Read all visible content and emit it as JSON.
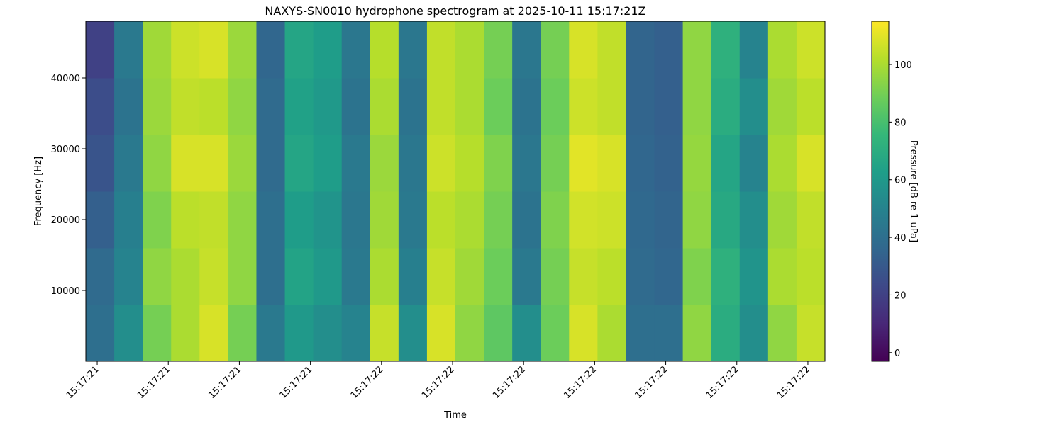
{
  "chart_data": {
    "type": "heatmap",
    "title": "NAXYS-SN0010 hydrophone spectrogram at 2025-10-11 15:17:21Z",
    "x_label": "Time",
    "y_label": "Frequency [Hz]",
    "colorbar_label": "Pressure [dB re 1 uPa]",
    "colormap": "viridis",
    "xlim": [
      -0.16,
      10.24
    ],
    "xticks": [
      {
        "value": 0,
        "label": "15:17:21"
      },
      {
        "value": 1,
        "label": "15:17:21"
      },
      {
        "value": 2,
        "label": "15:17:21"
      },
      {
        "value": 3,
        "label": "15:17:21"
      },
      {
        "value": 4,
        "label": "15:17:22"
      },
      {
        "value": 5,
        "label": "15:17:22"
      },
      {
        "value": 6,
        "label": "15:17:22"
      },
      {
        "value": 7,
        "label": "15:17:22"
      },
      {
        "value": 8,
        "label": "15:17:22"
      },
      {
        "value": 9,
        "label": "15:17:22"
      },
      {
        "value": 10,
        "label": "15:17:22"
      }
    ],
    "ylim": [
      0,
      48000
    ],
    "yticks": [
      10000,
      20000,
      30000,
      40000
    ],
    "clim": [
      -3,
      115
    ],
    "cticks": [
      0,
      20,
      40,
      60,
      80,
      100
    ],
    "xbins": [
      -0.16,
      0.24,
      0.64,
      1.04,
      1.44,
      1.84,
      2.24,
      2.64,
      3.04,
      3.44,
      3.84,
      4.24,
      4.64,
      5.04,
      5.44,
      5.84,
      6.24,
      6.64,
      7.04,
      7.44,
      7.84,
      8.24,
      8.64,
      9.04,
      9.44,
      9.84,
      10.24
    ],
    "ybins": [
      0,
      8000,
      16000,
      24000,
      32000,
      40000,
      48000
    ],
    "z": [
      [
        40,
        55,
        90,
        100,
        108,
        90,
        45,
        60,
        55,
        50,
        105,
        55,
        108,
        95,
        85,
        55,
        88,
        108,
        100,
        40,
        40,
        95,
        70,
        55,
        95,
        105
      ],
      [
        38,
        50,
        95,
        100,
        105,
        95,
        40,
        65,
        60,
        45,
        100,
        48,
        105,
        98,
        88,
        45,
        90,
        105,
        103,
        38,
        36,
        92,
        72,
        58,
        100,
        103
      ],
      [
        33,
        48,
        92,
        103,
        104,
        95,
        40,
        62,
        58,
        44,
        98,
        45,
        103,
        100,
        90,
        42,
        92,
        107,
        106,
        37,
        35,
        95,
        68,
        55,
        98,
        104
      ],
      [
        28,
        45,
        95,
        108,
        108,
        97,
        38,
        66,
        62,
        45,
        97,
        44,
        106,
        102,
        92,
        44,
        90,
        110,
        108,
        36,
        34,
        96,
        66,
        50,
        100,
        108
      ],
      [
        25,
        42,
        97,
        104,
        103,
        95,
        38,
        64,
        60,
        42,
        100,
        42,
        104,
        100,
        88,
        42,
        88,
        106,
        104,
        35,
        33,
        95,
        70,
        55,
        98,
        103
      ],
      [
        20,
        45,
        98,
        106,
        108,
        97,
        36,
        66,
        62,
        44,
        102,
        44,
        104,
        100,
        90,
        44,
        90,
        108,
        104,
        35,
        33,
        95,
        72,
        50,
        100,
        106
      ]
    ]
  }
}
